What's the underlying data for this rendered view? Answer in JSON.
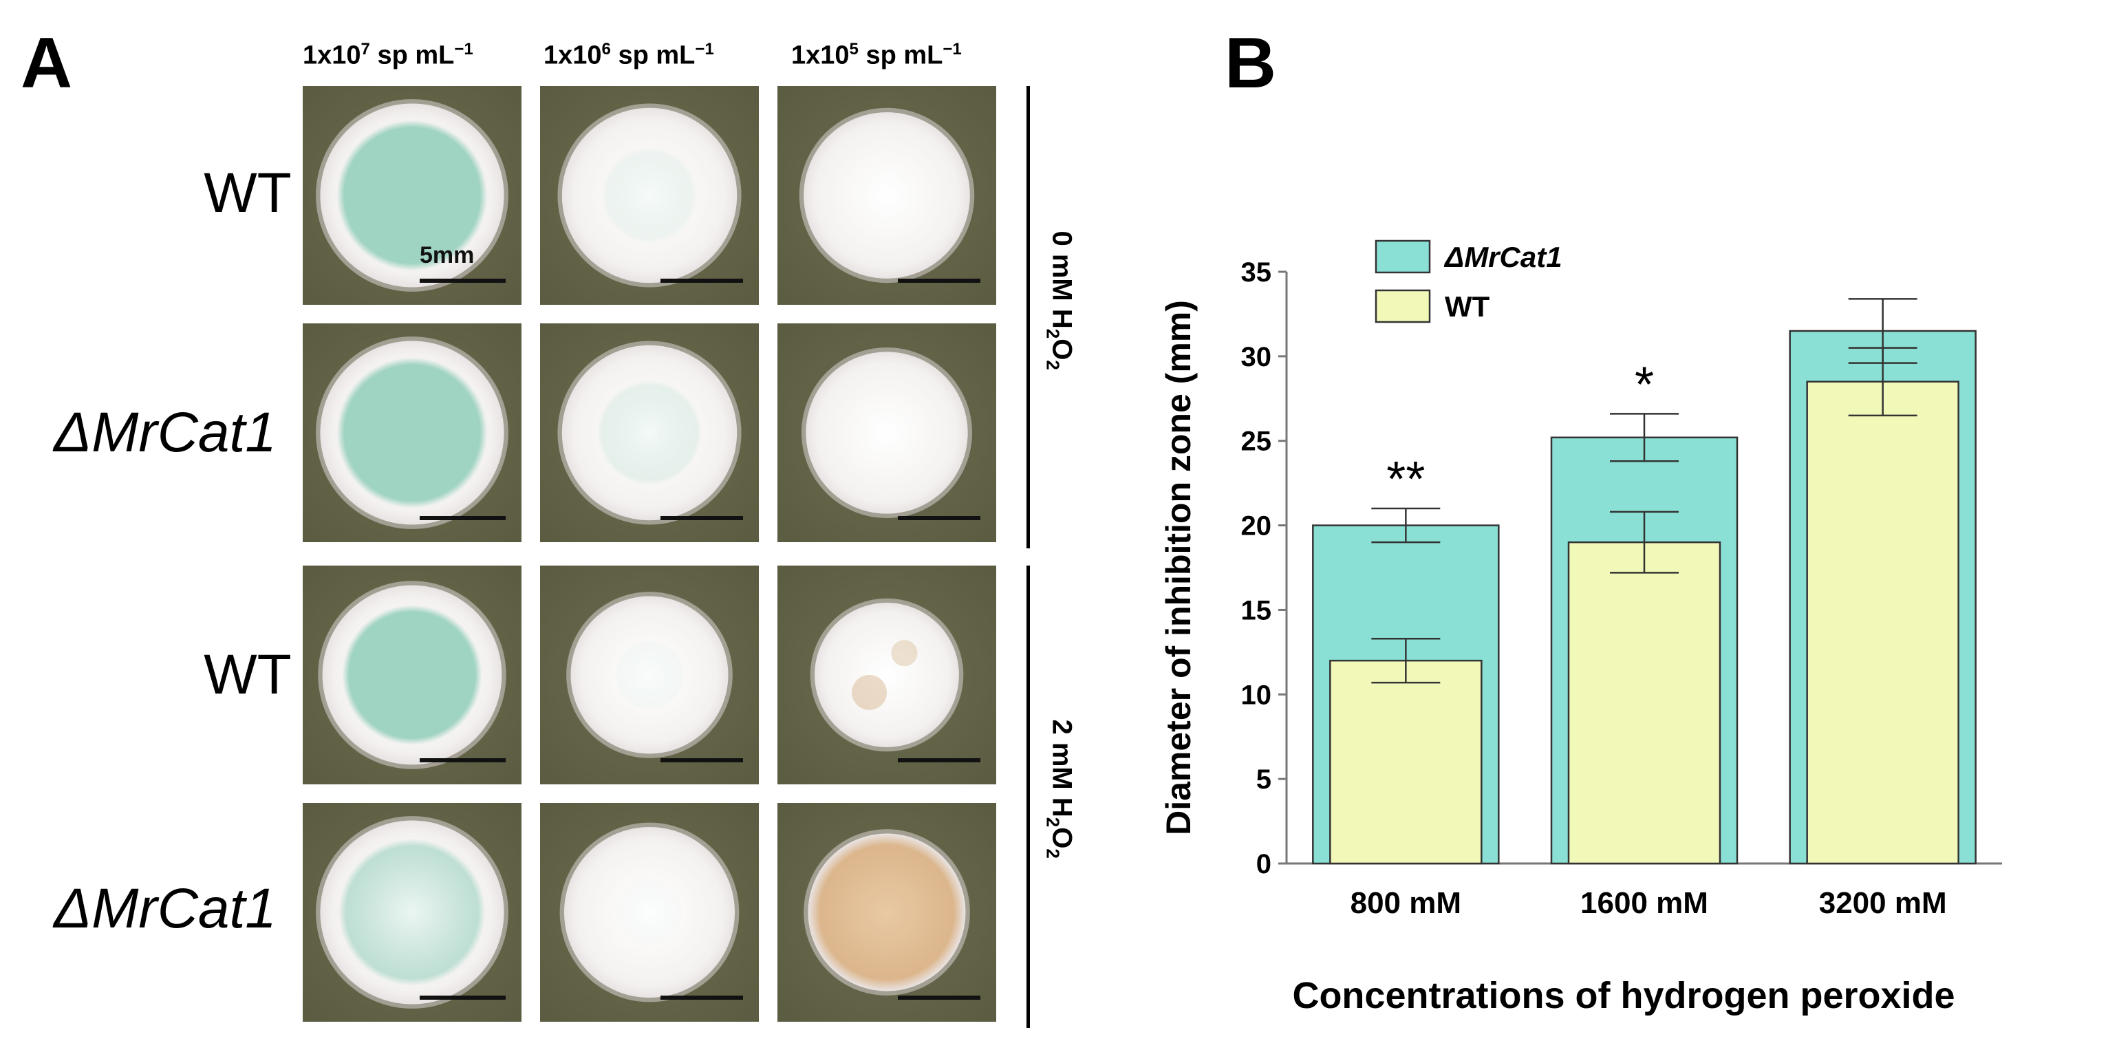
{
  "panel_a": {
    "letter": "A",
    "columns": [
      {
        "base": "1x10",
        "exp": "7",
        "unit": " sp mL",
        "unit_exp": "−1"
      },
      {
        "base": "1x10",
        "exp": "6",
        "unit": " sp mL",
        "unit_exp": "−1"
      },
      {
        "base": "1x10",
        "exp": "5",
        "unit": " sp mL",
        "unit_exp": "−1"
      }
    ],
    "rows": [
      {
        "label": "WT",
        "italic": false
      },
      {
        "label": "ΔMrCat1",
        "italic": true
      },
      {
        "label": "WT",
        "italic": false
      },
      {
        "label": "ΔMrCat1",
        "italic": true
      }
    ],
    "scale_label": "5mm",
    "conditions": [
      {
        "pre": "0 mM H",
        "sub1": "2",
        "mid": "O",
        "sub2": "2"
      },
      {
        "pre": "2 mM H",
        "sub1": "2",
        "mid": "O",
        "sub2": "2"
      }
    ],
    "colors": {
      "agar": "#5a5a40",
      "mycelium": "#f4f2f0",
      "conidia_green": "#9fd3c2",
      "pigmented": "#e8c9a3"
    }
  },
  "panel_b": {
    "letter": "B"
  },
  "chart_data": {
    "type": "bar",
    "title": "",
    "xlabel": "Concentrations of hydrogen peroxide",
    "ylabel": "Diameter of inhibition zone (mm)",
    "categories": [
      "800 mM",
      "1600 mM",
      "3200 mM"
    ],
    "ylim": [
      0,
      35
    ],
    "yticks": [
      "0",
      "5",
      "10",
      "15",
      "20",
      "25",
      "30",
      "35"
    ],
    "series": [
      {
        "name": "ΔMrCat1",
        "values": [
          20.0,
          25.2,
          31.5
        ],
        "errors": [
          1.0,
          1.4,
          1.9
        ],
        "color": "#8ae0d4"
      },
      {
        "name": "WT",
        "values": [
          12.0,
          19.0,
          28.5
        ],
        "errors": [
          1.3,
          1.8,
          2.0
        ],
        "color": "#f2f8b8"
      }
    ],
    "significance": [
      "**",
      "*",
      ""
    ],
    "legend": "top-left"
  }
}
